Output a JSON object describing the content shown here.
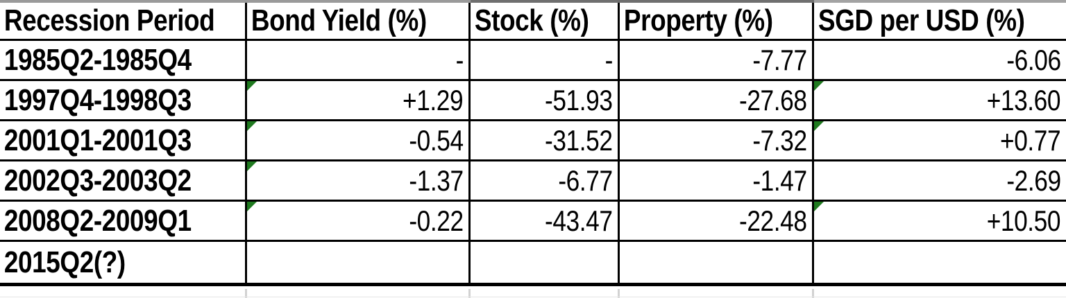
{
  "table": {
    "headers": [
      "Recession Period",
      "Bond Yield (%)",
      "Stock (%)",
      "Property (%)",
      "SGD per USD (%)"
    ],
    "rows": [
      {
        "period": "1985Q2-1985Q4",
        "values": {
          "bond_yield": "-",
          "stock": "-",
          "property": "-7.77",
          "sgd_per_usd": "-6.06"
        },
        "error_indicators": []
      },
      {
        "period": "1997Q4-1998Q3",
        "values": {
          "bond_yield": "+1.29",
          "stock": "-51.93",
          "property": "-27.68",
          "sgd_per_usd": "+13.60"
        },
        "error_indicators": [
          "bond_yield",
          "sgd_per_usd"
        ]
      },
      {
        "period": "2001Q1-2001Q3",
        "values": {
          "bond_yield": "-0.54",
          "stock": "-31.52",
          "property": "-7.32",
          "sgd_per_usd": "+0.77"
        },
        "error_indicators": [
          "bond_yield",
          "sgd_per_usd"
        ]
      },
      {
        "period": "2002Q3-2003Q2",
        "values": {
          "bond_yield": "-1.37",
          "stock": "-6.77",
          "property": "-1.47",
          "sgd_per_usd": "-2.69"
        },
        "error_indicators": [
          "bond_yield"
        ]
      },
      {
        "period": "2008Q2-2009Q1",
        "values": {
          "bond_yield": "-0.22",
          "stock": "-43.47",
          "property": "-22.48",
          "sgd_per_usd": "+10.50"
        },
        "error_indicators": [
          "bond_yield",
          "sgd_per_usd"
        ]
      },
      {
        "period": "2015Q2(?)",
        "values": {
          "bond_yield": "",
          "stock": "",
          "property": "",
          "sgd_per_usd": ""
        },
        "error_indicators": []
      }
    ]
  },
  "colors": {
    "error_indicator_green": "#1f7a1f",
    "grid_border": "#000000"
  }
}
